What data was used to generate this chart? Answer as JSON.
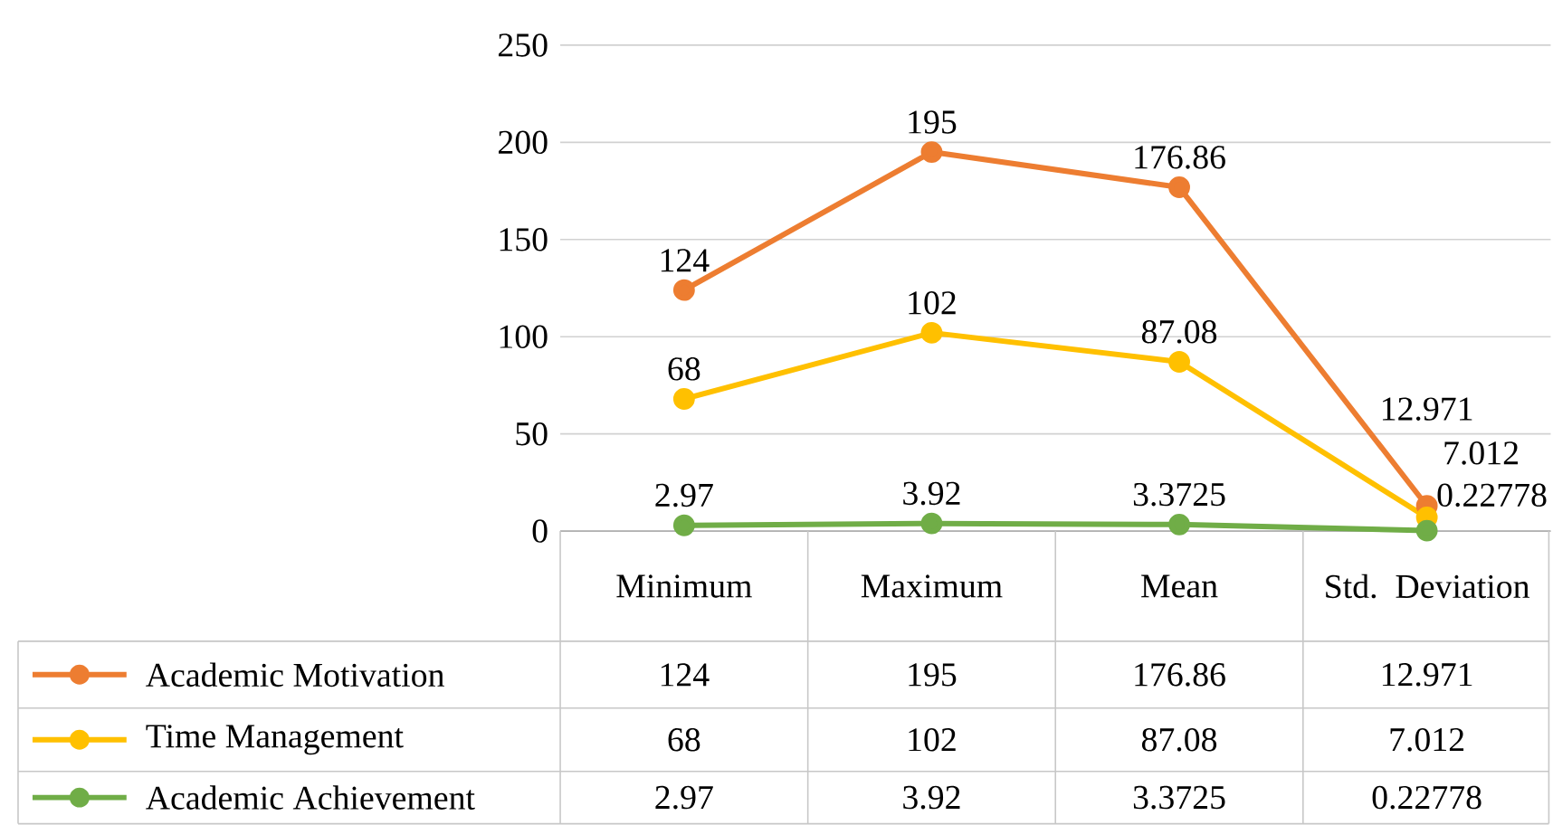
{
  "chart_data": {
    "type": "line",
    "categories": [
      "Minimum",
      "Maximum",
      "Mean",
      "Std. Deviation"
    ],
    "series": [
      {
        "name": "Academic Motivation",
        "color": "#ed7d31",
        "values": [
          124,
          195,
          176.86,
          12.971
        ],
        "value_labels": [
          "124",
          "195",
          "176.86",
          "12.971"
        ]
      },
      {
        "name": "Time Management",
        "color": "#ffc000",
        "values": [
          68,
          102,
          87.08,
          7.012
        ],
        "value_labels": [
          "68",
          "102",
          "87.08",
          "7.012"
        ]
      },
      {
        "name": "Academic Achievement",
        "color": "#70ad47",
        "values": [
          2.97,
          3.92,
          3.3725,
          0.22778
        ],
        "value_labels": [
          "2.97",
          "3.92",
          "3.3725",
          "0.22778"
        ]
      }
    ],
    "ylim": [
      0,
      250
    ],
    "yticks": [
      0,
      50,
      100,
      150,
      200,
      250
    ],
    "grid": "y",
    "marker": "circle",
    "line_style": "solid",
    "legend": "bottom"
  }
}
